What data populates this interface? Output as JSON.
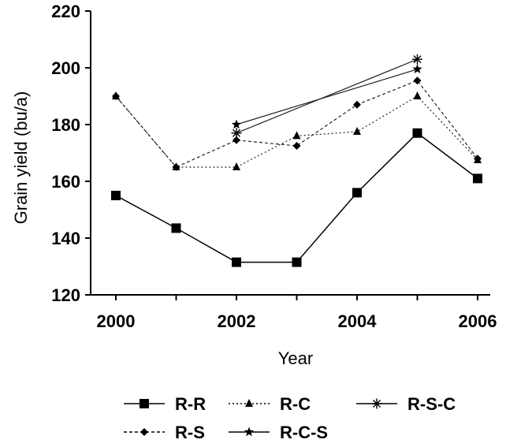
{
  "chart_data": {
    "type": "line",
    "xlabel": "Year",
    "ylabel": "Grain yield (bu/a)",
    "xlim": [
      2000,
      2006
    ],
    "ylim": [
      120,
      220
    ],
    "xticks": [
      "2000",
      "2002",
      "2004",
      "2006"
    ],
    "yticks": [
      "120",
      "140",
      "160",
      "180",
      "200",
      "220"
    ],
    "grid": false,
    "legend_position": "bottom",
    "series": [
      {
        "name": "R-R",
        "marker": "square",
        "line": "solid",
        "x": [
          2000,
          2001,
          2002,
          2003,
          2004,
          2005,
          2006
        ],
        "y": [
          155,
          143.5,
          131.5,
          131.5,
          156,
          177,
          161
        ]
      },
      {
        "name": "R-C",
        "marker": "triangle",
        "line": "dotted",
        "x": [
          2000,
          2001,
          2002,
          2003,
          2004,
          2005,
          2006
        ],
        "y": [
          190,
          165,
          165,
          176,
          177.5,
          190,
          167.5
        ]
      },
      {
        "name": "R-S-C",
        "marker": "asterisk",
        "line": "solid",
        "x": [
          2002,
          2005
        ],
        "y": [
          177,
          203
        ]
      },
      {
        "name": "R-S",
        "marker": "diamond",
        "line": "dashed",
        "x": [
          2000,
          2001,
          2002,
          2003,
          2004,
          2005,
          2006
        ],
        "y": [
          190,
          165,
          174.5,
          172.5,
          187,
          195.5,
          168
        ]
      },
      {
        "name": "R-C-S",
        "marker": "star",
        "line": "solid",
        "x": [
          2002,
          2005
        ],
        "y": [
          180,
          199.5
        ]
      }
    ]
  }
}
